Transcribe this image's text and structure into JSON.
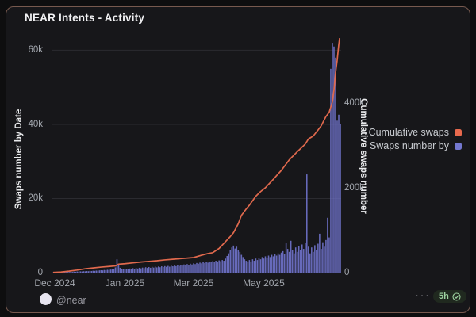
{
  "card": {
    "title": "NEAR Intents - Activity",
    "footer": {
      "handle": "@near",
      "menu": "···",
      "badge_label": "5h"
    }
  },
  "colors": {
    "bar": "#6f72c9",
    "line": "#e0694d",
    "grid": "#2b2b30",
    "legend_orange": "#e8694d",
    "legend_purple": "#7478d0",
    "border": "#77594e",
    "badge_green": "#9ed3a0"
  },
  "chart_data": {
    "type": "bar",
    "title": "NEAR Intents - Activity",
    "grid": true,
    "legend_position": "right",
    "legend": [
      {
        "label": "Cumulative swaps",
        "color": "#e8694d"
      },
      {
        "label": "Swaps number by",
        "color": "#7478d0"
      }
    ],
    "x_axis": {
      "labels": [
        {
          "text": "Dec 2024",
          "index": 1
        },
        {
          "text": "Jan 2025",
          "index": 45
        },
        {
          "text": "Mar 2025",
          "index": 88
        },
        {
          "text": "May 2025",
          "index": 132
        }
      ]
    },
    "left_axis": {
      "title": "Swaps number by Date",
      "ticks": [
        {
          "v": 0,
          "label": "0"
        },
        {
          "v": 20000,
          "label": "20k"
        },
        {
          "v": 40000,
          "label": "40k"
        },
        {
          "v": 60000,
          "label": "60k"
        }
      ],
      "range": [
        0,
        63300
      ]
    },
    "right_axis": {
      "title": "Cumulative swaps number",
      "ticks": [
        {
          "v": 0,
          "label": "0"
        },
        {
          "v": 200000,
          "label": "200k"
        },
        {
          "v": 400000,
          "label": "400k"
        }
      ],
      "range": [
        0,
        553000
      ]
    },
    "series": [
      {
        "name": "Swaps number by Date",
        "type": "bar",
        "axis": "left",
        "color": "#6f72c9",
        "values": [
          50,
          80,
          60,
          100,
          90,
          130,
          110,
          160,
          140,
          190,
          170,
          220,
          200,
          260,
          240,
          300,
          270,
          340,
          310,
          380,
          350,
          420,
          390,
          460,
          430,
          500,
          470,
          550,
          520,
          600,
          640,
          600,
          700,
          660,
          760,
          720,
          820,
          900,
          1000,
          1400,
          3600,
          2100,
          1300,
          1000,
          900,
          850,
          1000,
          900,
          1100,
          950,
          1200,
          1000,
          1250,
          1100,
          1300,
          1150,
          1350,
          1200,
          1450,
          1250,
          1500,
          1300,
          1550,
          1350,
          1600,
          1400,
          1650,
          1450,
          1700,
          1500,
          1750,
          1550,
          1800,
          1600,
          1850,
          1700,
          1900,
          1750,
          2000,
          1800,
          2100,
          1900,
          2200,
          2000,
          2300,
          2100,
          2400,
          2200,
          2500,
          2300,
          2600,
          2400,
          2700,
          2500,
          2800,
          2600,
          2900,
          2700,
          3000,
          2800,
          3100,
          2900,
          3200,
          3000,
          3300,
          3100,
          3400,
          3200,
          3800,
          4500,
          5200,
          6000,
          6800,
          7300,
          6500,
          7000,
          6200,
          5600,
          4800,
          4200,
          3600,
          3200,
          2900,
          3400,
          3000,
          3600,
          3200,
          3800,
          3400,
          4000,
          3600,
          4200,
          3800,
          4400,
          4000,
          4600,
          4200,
          4800,
          4400,
          5000,
          4600,
          5200,
          4800,
          5400,
          5800,
          5000,
          7900,
          6400,
          5600,
          8600,
          6000,
          5200,
          6800,
          5600,
          7200,
          6000,
          7600,
          6400,
          8000,
          26500,
          7000,
          5200,
          6800,
          5600,
          7400,
          6000,
          7800,
          10500,
          6400,
          8200,
          7000,
          8800,
          14800,
          9500,
          55000,
          62000,
          61000,
          58000,
          41000,
          42600,
          40000
        ]
      },
      {
        "name": "Cumulative swaps",
        "type": "line",
        "axis": "right",
        "color": "#e0694d",
        "points": [
          [
            0,
            500
          ],
          [
            5,
            1500
          ],
          [
            10,
            3500
          ],
          [
            15,
            6000
          ],
          [
            20,
            9000
          ],
          [
            25,
            11000
          ],
          [
            30,
            13000
          ],
          [
            35,
            14500
          ],
          [
            39,
            15800
          ],
          [
            41,
            19800
          ],
          [
            45,
            21000
          ],
          [
            50,
            23000
          ],
          [
            55,
            25000
          ],
          [
            60,
            26500
          ],
          [
            65,
            28000
          ],
          [
            70,
            30000
          ],
          [
            75,
            31500
          ],
          [
            80,
            33000
          ],
          [
            85,
            34500
          ],
          [
            88,
            35500
          ],
          [
            93,
            41000
          ],
          [
            97,
            45000
          ],
          [
            100,
            47000
          ],
          [
            104,
            57000
          ],
          [
            108,
            73000
          ],
          [
            111,
            85000
          ],
          [
            113,
            94000
          ],
          [
            116,
            115000
          ],
          [
            118,
            135000
          ],
          [
            121,
            150000
          ],
          [
            123,
            159000
          ],
          [
            127,
            180000
          ],
          [
            130,
            191000
          ],
          [
            133,
            200000
          ],
          [
            138,
            220000
          ],
          [
            143,
            241000
          ],
          [
            148,
            266000
          ],
          [
            153,
            285000
          ],
          [
            158,
            303000
          ],
          [
            160,
            315000
          ],
          [
            163,
            322000
          ],
          [
            166,
            336000
          ],
          [
            168,
            346000
          ],
          [
            171,
            368000
          ],
          [
            173,
            378000
          ],
          [
            175,
            402000
          ],
          [
            176,
            430000
          ],
          [
            177,
            471000
          ],
          [
            178,
            500000
          ],
          [
            179,
            537000
          ],
          [
            180,
            565000
          ]
        ]
      }
    ]
  }
}
